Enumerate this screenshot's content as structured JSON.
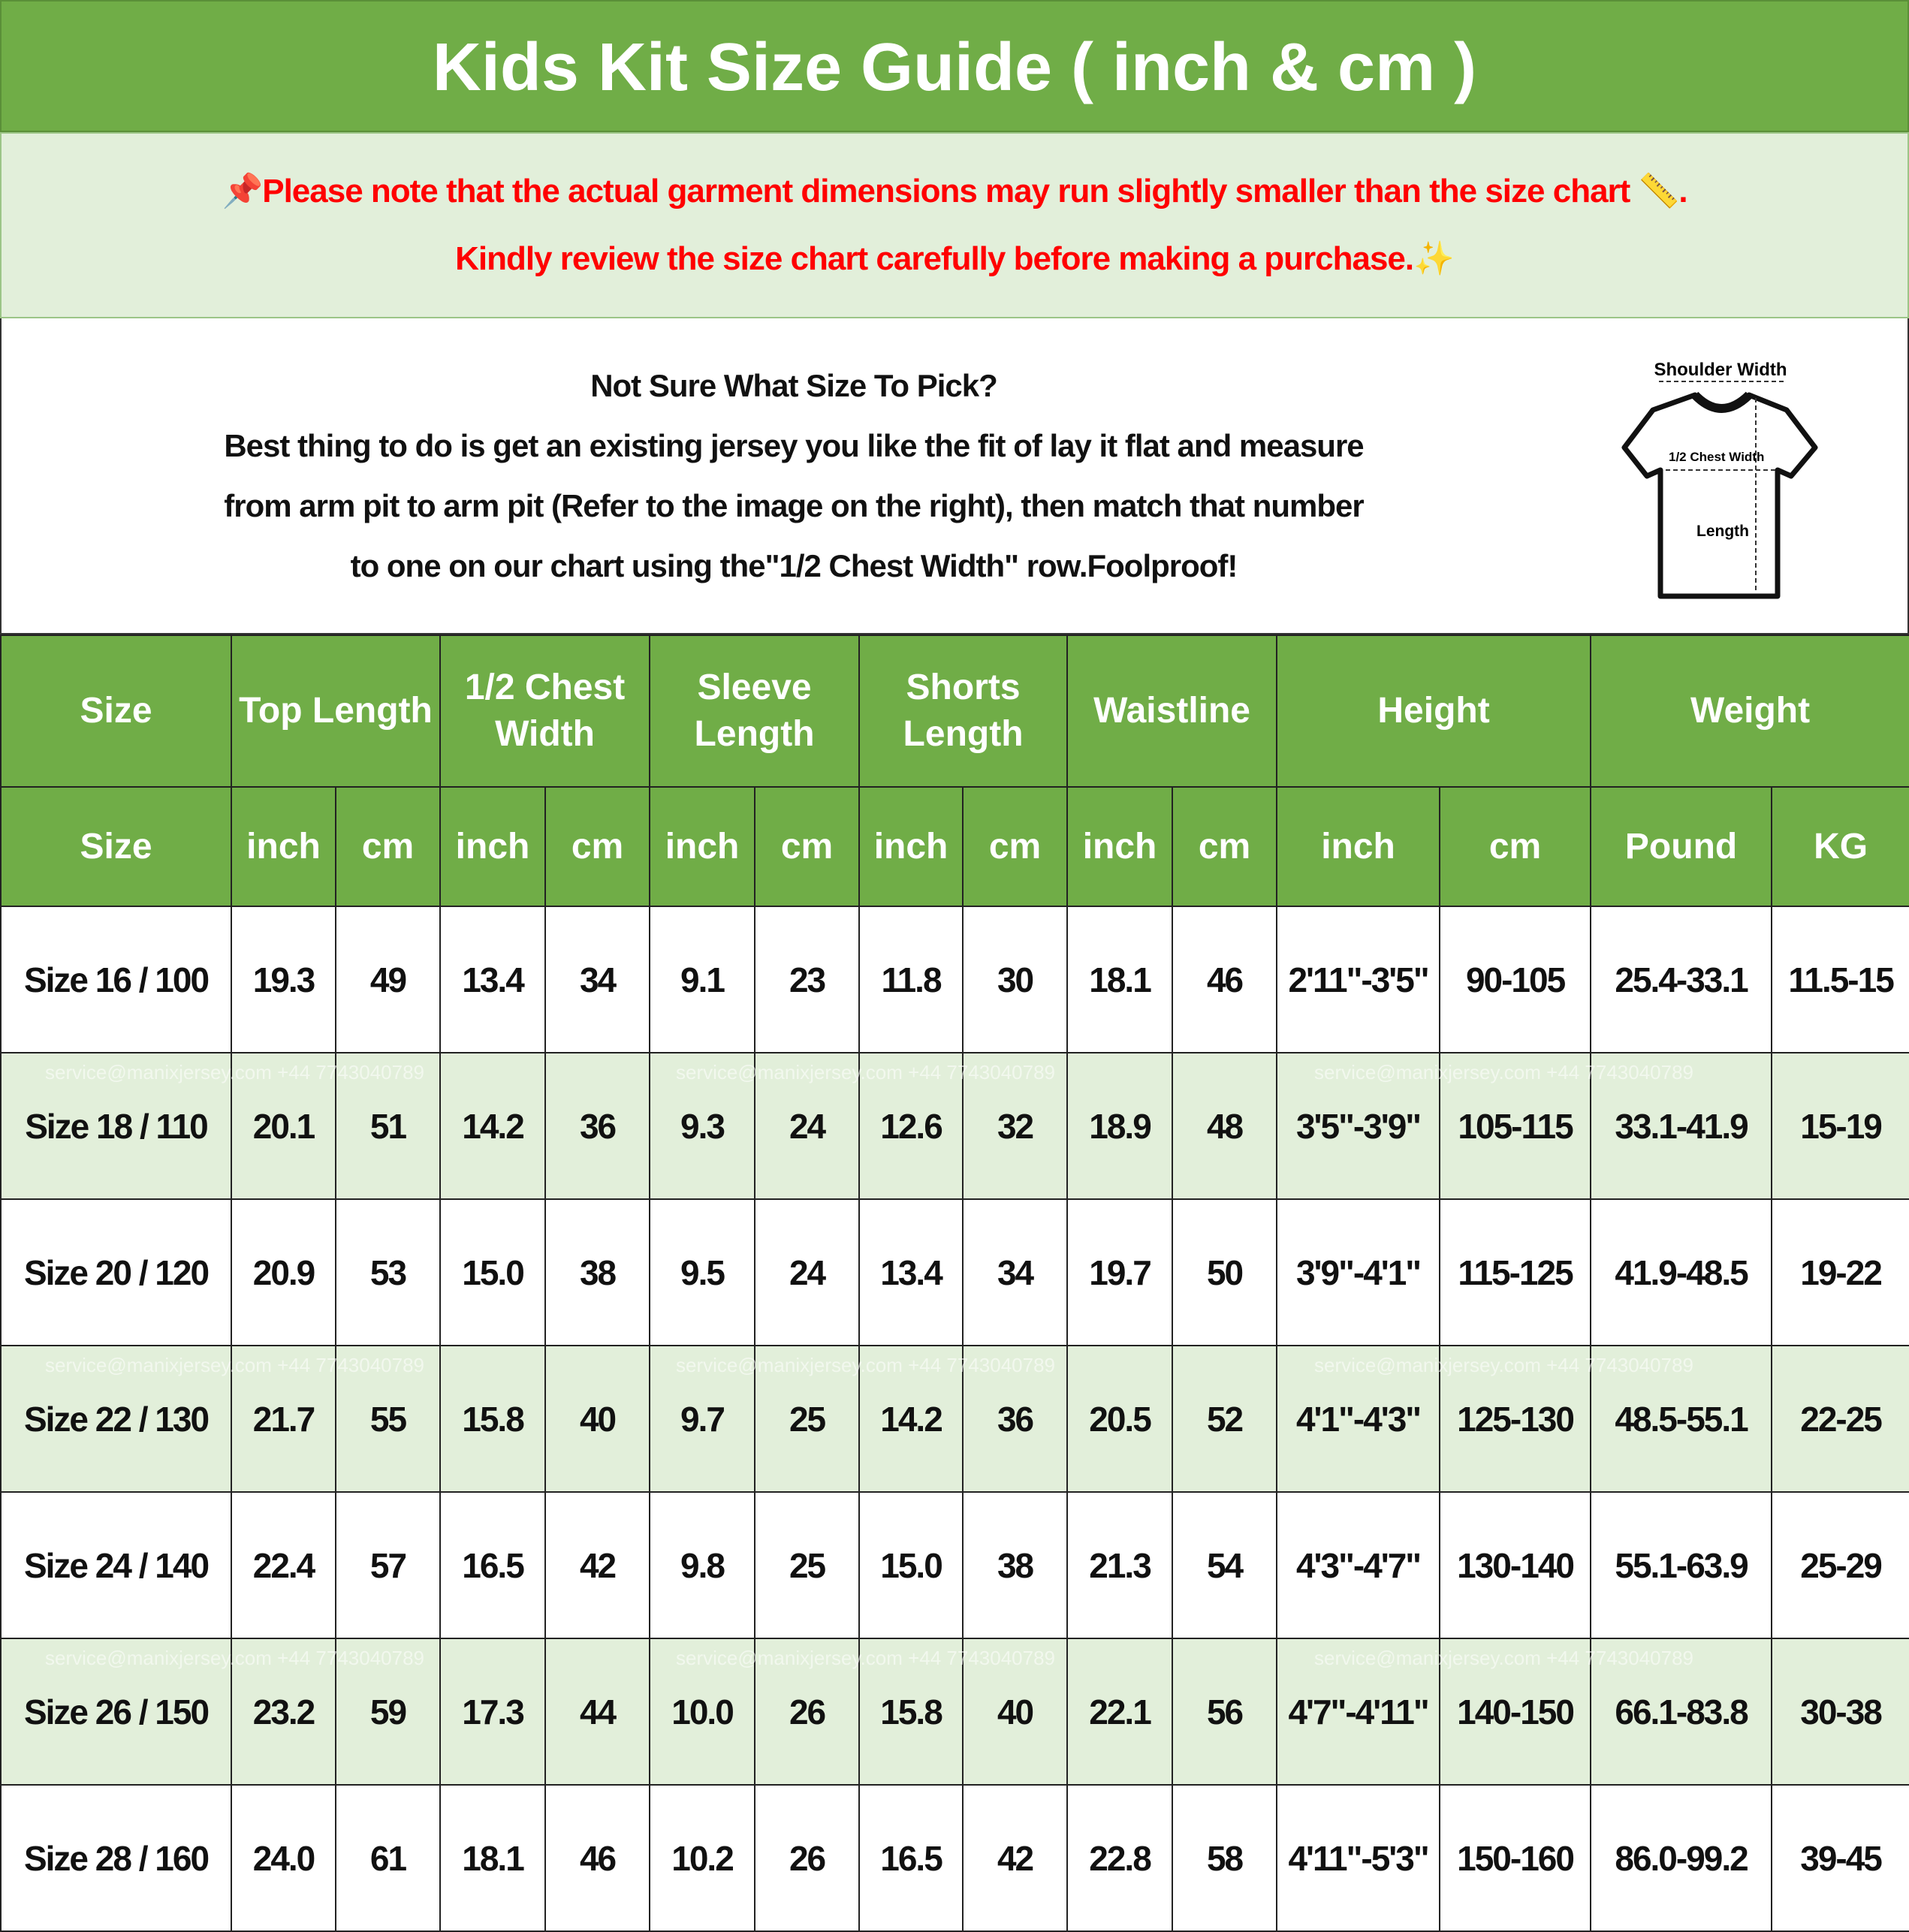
{
  "title": "Kids Kit Size Guide ( inch & cm )",
  "notice": {
    "line1": "📌Please note that the actual garment dimensions may run slightly smaller than the size chart 📏.",
    "line2": "Kindly review the size chart carefully before making a purchase.✨"
  },
  "info": {
    "heading": "Not Sure What Size To Pick?",
    "line1": "Best thing to do is get an existing jersey you like the fit of lay it flat and measure",
    "line2": "from arm pit to arm pit (Refer to the image on the right), then match that number",
    "line3": "to one on our chart using the\"1/2 Chest Width\" row.Foolproof!"
  },
  "diagram": {
    "shoulder": "Shoulder Width",
    "chest": "1/2 Chest Width",
    "length": "Length"
  },
  "watermark": "service@manixjersey.com +44 7743040789",
  "headers": {
    "group": [
      "Size",
      "Top Length",
      "1/2 Chest Width",
      "Sleeve Length",
      "Shorts Length",
      "Waistline",
      "Height",
      "Weight"
    ],
    "units": [
      "Size",
      "inch",
      "cm",
      "inch",
      "cm",
      "inch",
      "cm",
      "inch",
      "cm",
      "inch",
      "cm",
      "inch",
      "cm",
      "Pound",
      "KG"
    ]
  },
  "rows": [
    [
      "Size 16 / 100",
      "19.3",
      "49",
      "13.4",
      "34",
      "9.1",
      "23",
      "11.8",
      "30",
      "18.1",
      "46",
      "2'11\"-3'5\"",
      "90-105",
      "25.4-33.1",
      "11.5-15"
    ],
    [
      "Size 18 / 110",
      "20.1",
      "51",
      "14.2",
      "36",
      "9.3",
      "24",
      "12.6",
      "32",
      "18.9",
      "48",
      "3'5\"-3'9\"",
      "105-115",
      "33.1-41.9",
      "15-19"
    ],
    [
      "Size 20 / 120",
      "20.9",
      "53",
      "15.0",
      "38",
      "9.5",
      "24",
      "13.4",
      "34",
      "19.7",
      "50",
      "3'9\"-4'1\"",
      "115-125",
      "41.9-48.5",
      "19-22"
    ],
    [
      "Size 22 / 130",
      "21.7",
      "55",
      "15.8",
      "40",
      "9.7",
      "25",
      "14.2",
      "36",
      "20.5",
      "52",
      "4'1\"-4'3\"",
      "125-130",
      "48.5-55.1",
      "22-25"
    ],
    [
      "Size 24 / 140",
      "22.4",
      "57",
      "16.5",
      "42",
      "9.8",
      "25",
      "15.0",
      "38",
      "21.3",
      "54",
      "4'3\"-4'7\"",
      "130-140",
      "55.1-63.9",
      "25-29"
    ],
    [
      "Size 26 / 150",
      "23.2",
      "59",
      "17.3",
      "44",
      "10.0",
      "26",
      "15.8",
      "40",
      "22.1",
      "56",
      "4'7\"-4'11\"",
      "140-150",
      "66.1-83.8",
      "30-38"
    ],
    [
      "Size 28 / 160",
      "24.0",
      "61",
      "18.1",
      "46",
      "10.2",
      "26",
      "16.5",
      "42",
      "22.8",
      "58",
      "4'11\"-5'3\"",
      "150-160",
      "86.0-99.2",
      "39-45"
    ]
  ],
  "colors": {
    "green": "#70AD47",
    "light_green": "#E2EFDA",
    "notice_red": "#FF0000"
  }
}
